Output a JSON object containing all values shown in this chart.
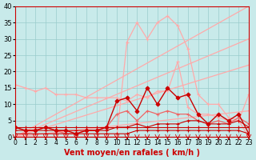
{
  "background_color": "#c8eaea",
  "grid_color": "#99cccc",
  "xlabel": "Vent moyen/en rafales ( km/h )",
  "xlabel_color": "#cc0000",
  "xlabel_fontsize": 7,
  "xtick_fontsize": 5.5,
  "ytick_fontsize": 6,
  "xlim": [
    0,
    23
  ],
  "ylim": [
    0,
    40
  ],
  "yticks": [
    0,
    5,
    10,
    15,
    20,
    25,
    30,
    35,
    40
  ],
  "xticks": [
    0,
    1,
    2,
    3,
    4,
    5,
    6,
    7,
    8,
    9,
    10,
    11,
    12,
    13,
    14,
    15,
    16,
    17,
    18,
    19,
    20,
    21,
    22,
    23
  ],
  "lines": [
    {
      "x": [
        0,
        23
      ],
      "y": [
        0,
        40
      ],
      "color": "#ffaaaa",
      "alpha": 1.0,
      "linewidth": 0.9,
      "marker": null,
      "markersize": 0
    },
    {
      "x": [
        0,
        23
      ],
      "y": [
        0,
        30
      ],
      "color": "#ffaaaa",
      "alpha": 1.0,
      "linewidth": 0.9,
      "marker": null,
      "markersize": 0
    },
    {
      "x": [
        0,
        23
      ],
      "y": [
        0,
        22
      ],
      "color": "#ffaaaa",
      "alpha": 1.0,
      "linewidth": 0.9,
      "marker": null,
      "markersize": 0
    },
    {
      "x": [
        0,
        23
      ],
      "y": [
        0,
        8
      ],
      "color": "#ffaaaa",
      "alpha": 1.0,
      "linewidth": 0.9,
      "marker": null,
      "markersize": 0
    },
    {
      "x": [
        0,
        1,
        2,
        3,
        4,
        5,
        6,
        7,
        8,
        9,
        10,
        11,
        12,
        13,
        14,
        15,
        16,
        17,
        18,
        19,
        20,
        21,
        22,
        23
      ],
      "y": [
        0,
        0,
        0,
        0,
        0,
        0,
        0,
        0,
        0,
        0,
        0,
        29,
        35,
        30,
        35,
        37,
        34,
        27,
        13,
        10,
        10,
        6,
        5,
        0
      ],
      "color": "#ffaaaa",
      "alpha": 1.0,
      "linewidth": 0.9,
      "marker": "+",
      "markersize": 3
    },
    {
      "x": [
        0,
        1,
        2,
        3,
        4,
        5,
        6,
        7,
        8,
        9,
        10,
        11,
        12,
        13,
        14,
        15,
        16,
        17,
        18,
        19,
        20,
        21,
        22,
        23
      ],
      "y": [
        16,
        15,
        14,
        15,
        13,
        13,
        13,
        12,
        12,
        12,
        12,
        11,
        13,
        12,
        14,
        14,
        23,
        9,
        7,
        7,
        6,
        5,
        5,
        13
      ],
      "color": "#ffaaaa",
      "alpha": 1.0,
      "linewidth": 0.9,
      "marker": "+",
      "markersize": 3
    },
    {
      "x": [
        0,
        1,
        2,
        3,
        4,
        5,
        6,
        7,
        8,
        9,
        10,
        11,
        12,
        13,
        14,
        15,
        16,
        17,
        18,
        19,
        20,
        21,
        22,
        23
      ],
      "y": [
        3,
        2,
        2,
        3,
        2,
        1,
        1,
        2,
        2,
        3,
        7,
        8,
        5,
        8,
        7,
        8,
        7,
        7,
        5,
        4,
        5,
        4,
        6,
        4
      ],
      "color": "#ee6666",
      "alpha": 1.0,
      "linewidth": 0.9,
      "marker": "+",
      "markersize": 3
    },
    {
      "x": [
        0,
        1,
        2,
        3,
        4,
        5,
        6,
        7,
        8,
        9,
        10,
        11,
        12,
        13,
        14,
        15,
        16,
        17,
        18,
        19,
        20,
        21,
        22,
        23
      ],
      "y": [
        3,
        2,
        2,
        3,
        2,
        2,
        1,
        2,
        2,
        3,
        11,
        12,
        8,
        15,
        10,
        15,
        12,
        13,
        7,
        4,
        7,
        5,
        7,
        1
      ],
      "color": "#cc0000",
      "alpha": 1.0,
      "linewidth": 1.0,
      "marker": "D",
      "markersize": 2.5
    },
    {
      "x": [
        0,
        1,
        2,
        3,
        4,
        5,
        6,
        7,
        8,
        9,
        10,
        11,
        12,
        13,
        14,
        15,
        16,
        17,
        18,
        19,
        20,
        21,
        22,
        23
      ],
      "y": [
        3,
        3,
        3,
        3,
        3,
        3,
        3,
        3,
        3,
        3,
        3,
        3,
        3,
        3,
        3,
        3,
        3,
        3,
        3,
        3,
        3,
        3,
        3,
        3
      ],
      "color": "#cc0000",
      "alpha": 1.0,
      "linewidth": 0.8,
      "marker": "+",
      "markersize": 3
    },
    {
      "x": [
        0,
        1,
        2,
        3,
        4,
        5,
        6,
        7,
        8,
        9,
        10,
        11,
        12,
        13,
        14,
        15,
        16,
        17,
        18,
        19,
        20,
        21,
        22,
        23
      ],
      "y": [
        1,
        1,
        1,
        1,
        1,
        1,
        1,
        1,
        1,
        1,
        1,
        1,
        2,
        2,
        2,
        2,
        2,
        2,
        2,
        2,
        2,
        2,
        2,
        1
      ],
      "color": "#cc0000",
      "alpha": 1.0,
      "linewidth": 0.8,
      "marker": "+",
      "markersize": 3
    },
    {
      "x": [
        0,
        1,
        2,
        3,
        4,
        5,
        6,
        7,
        8,
        9,
        10,
        11,
        12,
        13,
        14,
        15,
        16,
        17,
        18,
        19,
        20,
        21,
        22,
        23
      ],
      "y": [
        2,
        2,
        2,
        2,
        2,
        2,
        2,
        2,
        2,
        2,
        3,
        3,
        4,
        3,
        4,
        4,
        4,
        5,
        5,
        4,
        4,
        4,
        5,
        3
      ],
      "color": "#cc0000",
      "alpha": 1.0,
      "linewidth": 0.8,
      "marker": "+",
      "markersize": 3
    },
    {
      "x": [
        0,
        23
      ],
      "y": [
        0,
        0
      ],
      "color": "#cc0000",
      "alpha": 1.0,
      "linewidth": 0.8,
      "marker": null,
      "markersize": 0
    }
  ]
}
